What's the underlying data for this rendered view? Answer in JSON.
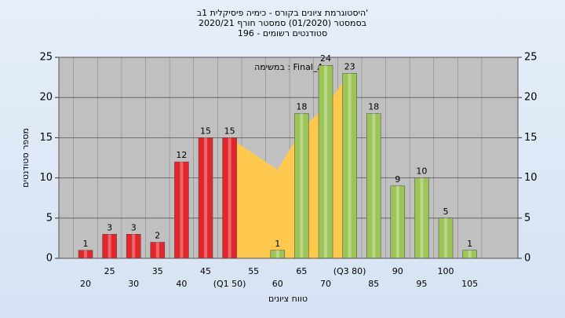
{
  "chart_data": {
    "type": "bar",
    "title": [
      "'היסטוגרמת ציונים בקורס - כימיה פיסיקלית 1ב",
      "בסמסטר  (01/2020)  סמסטר חורף 2020/21",
      "סטודנטים רשומים - 196"
    ],
    "annotation": "Final_A : במשימה",
    "xlabel": "טווח ציונים",
    "ylabel": "מספר סטודנטים",
    "categories": [
      "20",
      "25",
      "30",
      "35",
      "40",
      "45",
      "(Q1 50)",
      "55",
      "60",
      "65",
      "70",
      "(Q3 80)",
      "85",
      "90",
      "95",
      "100",
      "105"
    ],
    "series": [
      {
        "type": "area",
        "color": "#ffc94f",
        "values": [
          null,
          null,
          null,
          null,
          null,
          null,
          15,
          13,
          11,
          16,
          19,
          23,
          null,
          null,
          null,
          null,
          null
        ]
      },
      {
        "type": "bar",
        "colors": [
          "#e3262b",
          "#e3262b",
          "#e3262b",
          "#e3262b",
          "#e3262b",
          "#e3262b",
          "#e3262b",
          "#e3262b",
          "#9cc456",
          "#9cc456",
          "#9cc456",
          "#9cc456",
          "#9cc456",
          "#9cc456",
          "#9cc456",
          "#9cc456",
          "#9cc456"
        ],
        "values": [
          1,
          3,
          3,
          2,
          12,
          15,
          15,
          null,
          1,
          18,
          24,
          23,
          18,
          9,
          10,
          5,
          1
        ]
      }
    ],
    "ylim": [
      0,
      25
    ],
    "yticks": [
      0,
      5,
      10,
      15,
      20,
      25
    ],
    "y2lim": [
      0,
      25
    ],
    "y2ticks": [
      0,
      5,
      10,
      15,
      20,
      25
    ],
    "grid": true
  }
}
